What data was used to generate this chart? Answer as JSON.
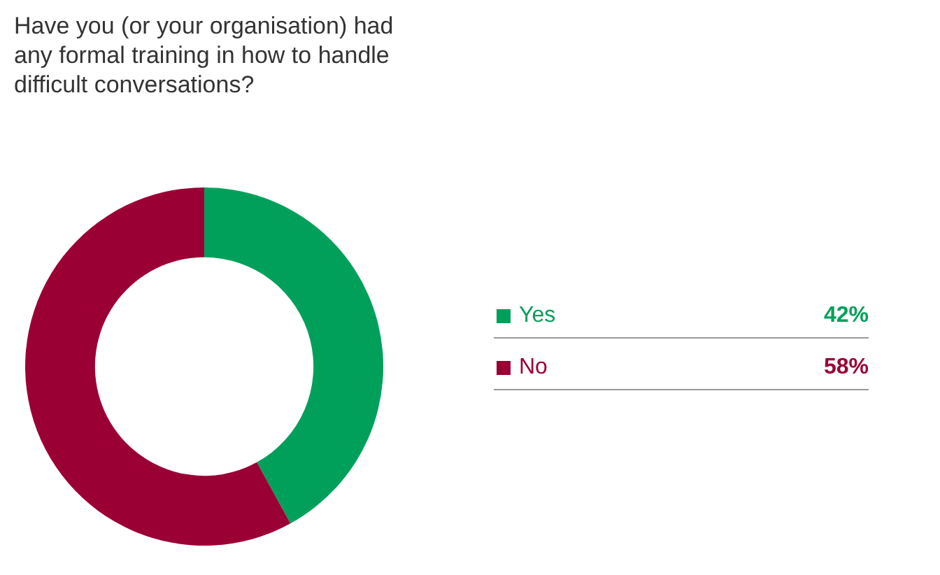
{
  "chart_data": {
    "type": "donut",
    "title": "Have you (or your organisation) had any formal training in how to handle difficult conversations?",
    "categories": [
      "Yes",
      "No"
    ],
    "values": [
      42,
      58
    ],
    "colors": [
      "#00a05a",
      "#9b0035"
    ],
    "value_labels": [
      "42%",
      "58%"
    ],
    "legend": "right"
  }
}
